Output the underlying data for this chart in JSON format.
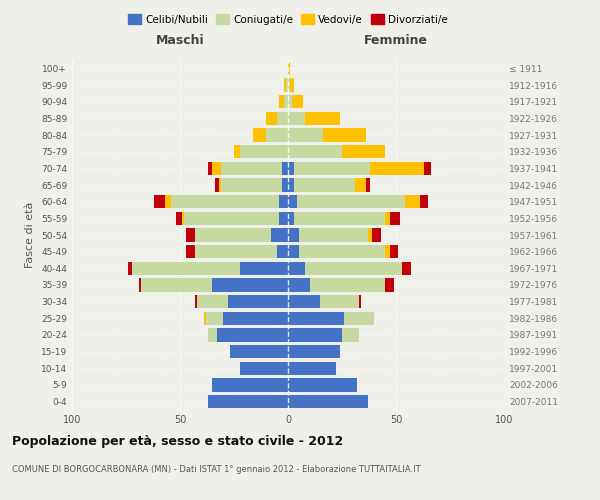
{
  "age_groups": [
    "0-4",
    "5-9",
    "10-14",
    "15-19",
    "20-24",
    "25-29",
    "30-34",
    "35-39",
    "40-44",
    "45-49",
    "50-54",
    "55-59",
    "60-64",
    "65-69",
    "70-74",
    "75-79",
    "80-84",
    "85-89",
    "90-94",
    "95-99",
    "100+"
  ],
  "birth_years": [
    "2007-2011",
    "2002-2006",
    "1997-2001",
    "1992-1996",
    "1987-1991",
    "1982-1986",
    "1977-1981",
    "1972-1976",
    "1967-1971",
    "1962-1966",
    "1957-1961",
    "1952-1956",
    "1947-1951",
    "1942-1946",
    "1937-1941",
    "1932-1936",
    "1927-1931",
    "1922-1926",
    "1917-1921",
    "1912-1916",
    "≤ 1911"
  ],
  "male": {
    "celibi": [
      37,
      35,
      22,
      27,
      33,
      30,
      28,
      35,
      22,
      5,
      8,
      4,
      4,
      3,
      3,
      0,
      0,
      0,
      0,
      0,
      0
    ],
    "coniugati": [
      0,
      0,
      0,
      0,
      4,
      8,
      14,
      33,
      50,
      38,
      35,
      44,
      50,
      28,
      28,
      22,
      10,
      5,
      2,
      1,
      0
    ],
    "vedovi": [
      0,
      0,
      0,
      0,
      0,
      1,
      0,
      0,
      0,
      0,
      0,
      1,
      3,
      1,
      4,
      3,
      6,
      5,
      2,
      1,
      0
    ],
    "divorziati": [
      0,
      0,
      0,
      0,
      0,
      0,
      1,
      1,
      2,
      4,
      4,
      3,
      5,
      2,
      2,
      0,
      0,
      0,
      0,
      0,
      0
    ]
  },
  "female": {
    "nubili": [
      37,
      32,
      22,
      24,
      25,
      26,
      15,
      10,
      8,
      5,
      5,
      3,
      4,
      3,
      3,
      0,
      0,
      0,
      0,
      0,
      0
    ],
    "coniugate": [
      0,
      0,
      0,
      0,
      8,
      14,
      18,
      35,
      45,
      40,
      32,
      42,
      50,
      28,
      35,
      25,
      16,
      8,
      2,
      1,
      0
    ],
    "vedove": [
      0,
      0,
      0,
      0,
      0,
      0,
      0,
      0,
      0,
      2,
      2,
      2,
      7,
      5,
      25,
      20,
      20,
      16,
      5,
      2,
      1
    ],
    "divorziate": [
      0,
      0,
      0,
      0,
      0,
      0,
      1,
      4,
      4,
      4,
      4,
      5,
      4,
      2,
      3,
      0,
      0,
      0,
      0,
      0,
      0
    ]
  },
  "colors": {
    "celibi": "#4472c4",
    "coniugati": "#c5d9a0",
    "vedovi": "#ffc000",
    "divorziati": "#c0000a"
  },
  "title": "Popolazione per età, sesso e stato civile - 2012",
  "subtitle": "COMUNE DI BORGOCARBONARA (MN) - Dati ISTAT 1° gennaio 2012 - Elaborazione TUTTAITALIA.IT",
  "xlabel_left": "Maschi",
  "xlabel_right": "Femmine",
  "ylabel_left": "Fasce di età",
  "xlim": 100,
  "legend_labels": [
    "Celibi/Nubili",
    "Coniugati/e",
    "Vedovi/e",
    "Divorziati/e"
  ],
  "bg_color": "#f0f0eb"
}
